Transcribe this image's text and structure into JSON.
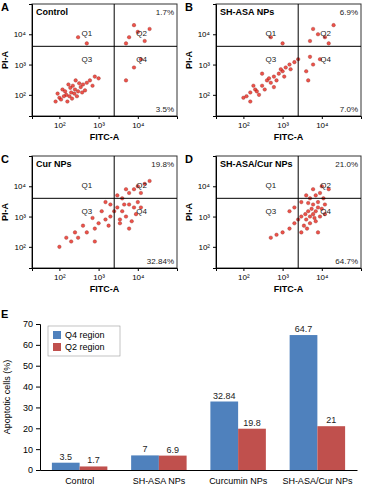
{
  "chart_data": [
    {
      "type": "scatter",
      "panel_label": "A",
      "title": "Control",
      "x_label": "FITC-A",
      "y_label": "PI-A",
      "log": true,
      "xlim": [
        20,
        100000
      ],
      "ylim": [
        20,
        100000
      ],
      "xticks": [
        {
          "value": 100,
          "label": "10²"
        },
        {
          "value": 1000,
          "label": "10³"
        },
        {
          "value": 10000,
          "label": "10⁴"
        }
      ],
      "yticks": [
        {
          "value": 100,
          "label": "10²"
        },
        {
          "value": 1000,
          "label": "10³"
        },
        {
          "value": 10000,
          "label": "10⁴"
        }
      ],
      "gate": {
        "x": 2500,
        "y": 4000
      },
      "quadrants": [
        {
          "label": "Q1"
        },
        {
          "label": "Q2",
          "value": 1.7,
          "value_label": "1.7%"
        },
        {
          "label": "Q3"
        },
        {
          "label": "Q4",
          "value": 3.5,
          "value_label": "3.5%"
        }
      ],
      "color": "#e8281e",
      "x": [
        100,
        150,
        200,
        250,
        180,
        300,
        120,
        220,
        160,
        350,
        400,
        90,
        280,
        140,
        500,
        600,
        240,
        190,
        320,
        110,
        700,
        450,
        80,
        260,
        170,
        800,
        130,
        1000,
        210,
        380,
        6000,
        10000,
        15000,
        8000,
        20000,
        5000,
        5000,
        8000,
        12000,
        500,
        300
      ],
      "y": [
        80,
        100,
        120,
        150,
        90,
        130,
        150,
        200,
        60,
        180,
        220,
        110,
        90,
        130,
        250,
        300,
        110,
        170,
        240,
        70,
        200,
        140,
        60,
        300,
        220,
        400,
        90,
        350,
        75,
        120,
        8000,
        12000,
        6000,
        20000,
        15000,
        5000,
        300,
        800,
        1500,
        5000,
        8000
      ]
    },
    {
      "type": "scatter",
      "panel_label": "B",
      "title": "SH-ASA NPs",
      "x_label": "FITC-A",
      "y_label": "PI-A",
      "log": true,
      "xlim": [
        20,
        100000
      ],
      "ylim": [
        20,
        100000
      ],
      "xticks": [
        {
          "value": 100,
          "label": "10²"
        },
        {
          "value": 1000,
          "label": "10³"
        },
        {
          "value": 10000,
          "label": "10⁴"
        }
      ],
      "yticks": [
        {
          "value": 100,
          "label": "10²"
        },
        {
          "value": 1000,
          "label": "10³"
        },
        {
          "value": 10000,
          "label": "10⁴"
        }
      ],
      "gate": {
        "x": 2500,
        "y": 4000
      },
      "quadrants": [
        {
          "label": "Q1"
        },
        {
          "label": "Q2",
          "value": 6.9,
          "value_label": "6.9%"
        },
        {
          "label": "Q3"
        },
        {
          "label": "Q4",
          "value": 7.0,
          "value_label": "7.0%"
        }
      ],
      "color": "#e8281e",
      "x": [
        100,
        150,
        200,
        300,
        400,
        500,
        600,
        800,
        1000,
        1200,
        250,
        350,
        180,
        700,
        900,
        1500,
        2000,
        120,
        450,
        220,
        1100,
        1600,
        2500,
        300,
        150,
        600,
        4000,
        6000,
        5000,
        9000,
        4500,
        5000,
        8000,
        12000,
        20000,
        6000,
        15000,
        1000,
        500
      ],
      "y": [
        80,
        120,
        150,
        200,
        300,
        250,
        400,
        500,
        600,
        800,
        100,
        150,
        200,
        300,
        700,
        1000,
        1200,
        90,
        350,
        130,
        400,
        700,
        1500,
        500,
        60,
        180,
        600,
        1000,
        1800,
        1500,
        300,
        6000,
        10000,
        8000,
        20000,
        15000,
        5000,
        5000,
        8000
      ]
    },
    {
      "type": "scatter",
      "panel_label": "C",
      "title": "Cur NPs",
      "x_label": "FITC-A",
      "y_label": "PI-A",
      "log": true,
      "xlim": [
        20,
        100000
      ],
      "ylim": [
        20,
        100000
      ],
      "xticks": [
        {
          "value": 100,
          "label": "10²"
        },
        {
          "value": 1000,
          "label": "10³"
        },
        {
          "value": 10000,
          "label": "10⁴"
        }
      ],
      "yticks": [
        {
          "value": 100,
          "label": "10²"
        },
        {
          "value": 1000,
          "label": "10³"
        },
        {
          "value": 10000,
          "label": "10⁴"
        }
      ],
      "gate": {
        "x": 2500,
        "y": 4000
      },
      "quadrants": [
        {
          "label": "Q1"
        },
        {
          "label": "Q2",
          "value": 19.8,
          "value_label": "19.8%"
        },
        {
          "label": "Q3"
        },
        {
          "label": "Q4",
          "value": 32.84,
          "value_label": "32.84%"
        }
      ],
      "color": "#e8281e",
      "x": [
        100,
        200,
        300,
        500,
        800,
        1000,
        1500,
        2000,
        2500,
        3000,
        4000,
        5000,
        6000,
        8000,
        10000,
        4000,
        6000,
        8000,
        10000,
        15000,
        5000,
        12000,
        3500,
        7000,
        9000,
        4500,
        2000,
        1200,
        700,
        400,
        250,
        150,
        20000,
        3000,
        1500,
        6000,
        12000,
        800,
        1800,
        3500
      ],
      "y": [
        100,
        150,
        200,
        300,
        400,
        600,
        800,
        1000,
        1500,
        2000,
        1500,
        1000,
        2500,
        2000,
        3000,
        4000,
        6000,
        8000,
        10000,
        12000,
        8000,
        6000,
        800,
        700,
        1200,
        2500,
        2500,
        1500,
        900,
        500,
        300,
        200,
        15000,
        5000,
        3000,
        400,
        2000,
        150,
        500,
        600
      ]
    },
    {
      "type": "scatter",
      "panel_label": "D",
      "title": "SH-ASA/Cur NPs",
      "x_label": "FITC-A",
      "y_label": "PI-A",
      "log": true,
      "xlim": [
        20,
        100000
      ],
      "ylim": [
        20,
        100000
      ],
      "xticks": [
        {
          "value": 100,
          "label": "10²"
        },
        {
          "value": 1000,
          "label": "10³"
        },
        {
          "value": 10000,
          "label": "10⁴"
        }
      ],
      "yticks": [
        {
          "value": 100,
          "label": "10²"
        },
        {
          "value": 1000,
          "label": "10³"
        },
        {
          "value": 10000,
          "label": "10⁴"
        }
      ],
      "gate": {
        "x": 2500,
        "y": 4000
      },
      "quadrants": [
        {
          "label": "Q1"
        },
        {
          "label": "Q2",
          "value": 21.0,
          "value_label": "21.0%"
        },
        {
          "label": "Q3"
        },
        {
          "label": "Q4",
          "value": 64.7,
          "value_label": "64.7%"
        }
      ],
      "color": "#e8281e",
      "x": [
        3500,
        4000,
        5000,
        6000,
        7000,
        8000,
        5000,
        4500,
        6000,
        9000,
        10000,
        3800,
        5500,
        7000,
        4200,
        6500,
        8000,
        12000,
        5000,
        7000,
        9000,
        6000,
        10000,
        4000,
        15000,
        3000,
        2500,
        2000,
        1500,
        1000,
        700,
        500,
        3000,
        2000,
        1500,
        11000,
        8000,
        12000,
        3000,
        4500
      ],
      "y": [
        500,
        800,
        1000,
        1200,
        1500,
        2000,
        600,
        1500,
        2500,
        1000,
        1800,
        1200,
        1800,
        700,
        400,
        900,
        3000,
        2500,
        4000,
        5000,
        6000,
        8000,
        10000,
        5000,
        8000,
        1000,
        800,
        600,
        400,
        300,
        250,
        200,
        3000,
        2000,
        1500,
        4000,
        300,
        1200,
        300,
        2800
      ]
    },
    {
      "type": "bar",
      "panel_label": "E",
      "y_label": "Apoptotic cells (%)",
      "categories": [
        "Control",
        "SH-ASA NPs",
        "Curcumin NPs",
        "SH-ASA/Cur NPs"
      ],
      "series": [
        {
          "name": "Q4 region",
          "color": "#4f81bd",
          "values": [
            3.5,
            7,
            32.84,
            64.7
          ]
        },
        {
          "name": "Q2 region",
          "color": "#c0504d",
          "values": [
            1.7,
            6.9,
            19.8,
            21
          ]
        }
      ],
      "ylim": [
        0,
        70
      ],
      "yticks": [
        0,
        10,
        20,
        30,
        40,
        50,
        60,
        70
      ],
      "legend": "top-left",
      "data_labels": true
    }
  ]
}
